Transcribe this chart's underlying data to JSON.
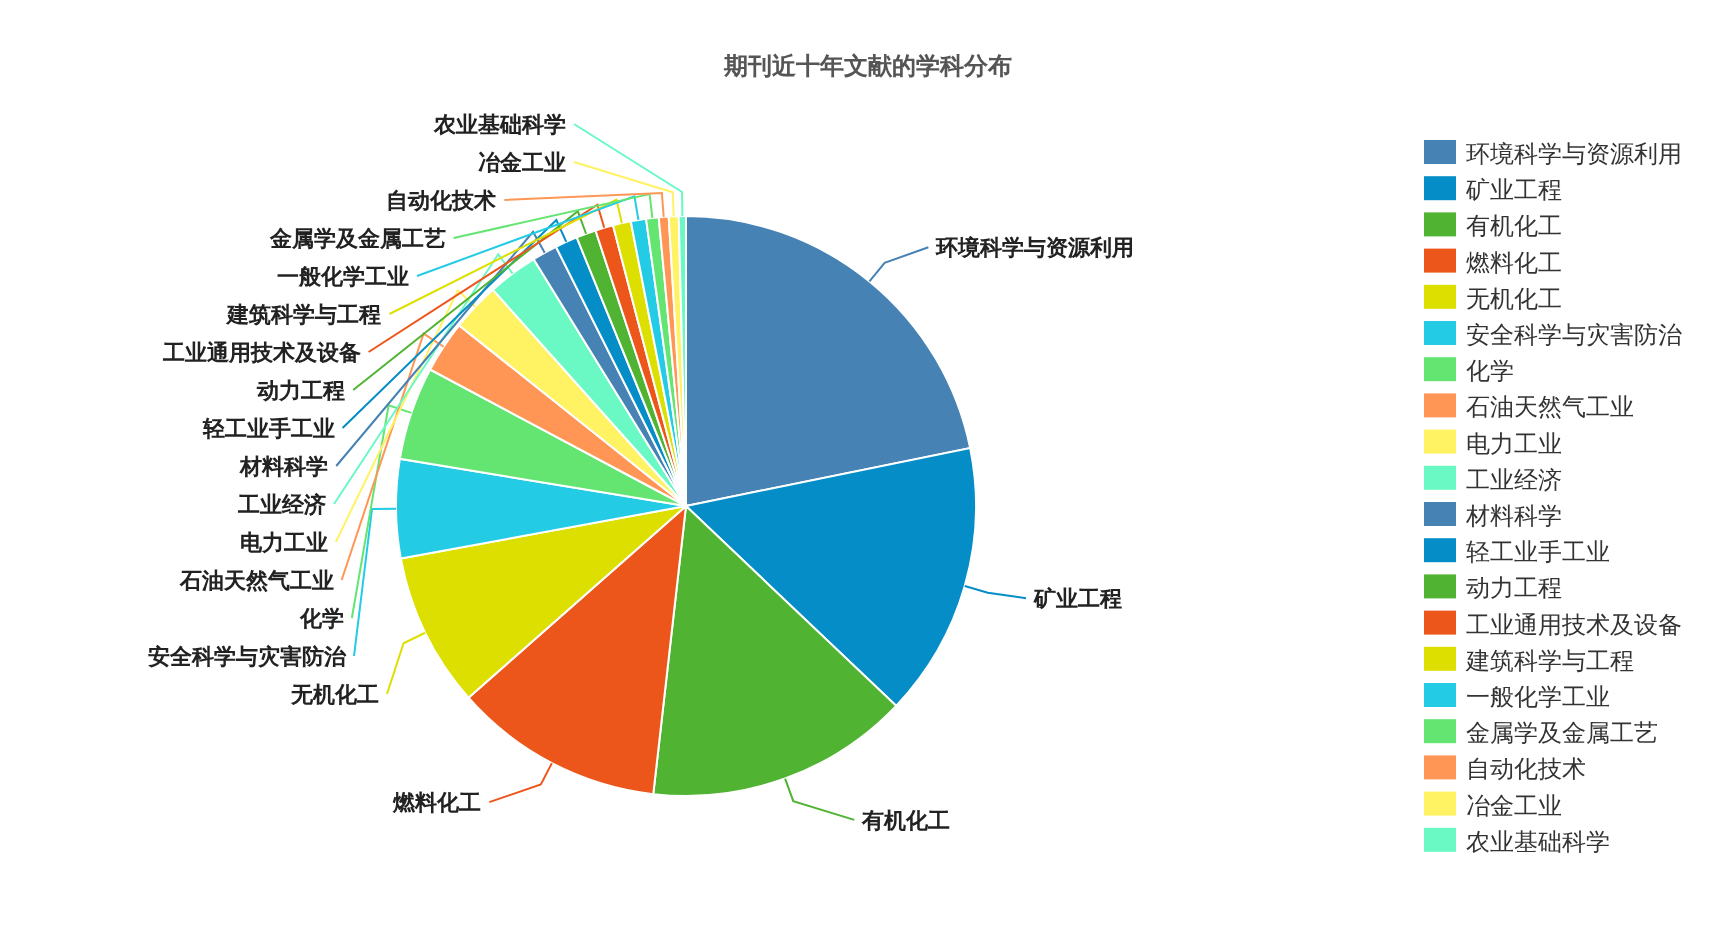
{
  "chart_data": {
    "type": "pie",
    "title": "期刊近十年文献的学科分布",
    "categories": [
      "环境科学与资源利用",
      "矿业工程",
      "有机化工",
      "燃料化工",
      "无机化工",
      "安全科学与灾害防治",
      "化学",
      "石油天然气工业",
      "电力工业",
      "工业经济",
      "材料科学",
      "轻工业手工业",
      "动力工程",
      "工业通用技术及设备",
      "建筑科学与工程",
      "一般化学工业",
      "金属学及金属工艺",
      "自动化技术",
      "冶金工业",
      "农业基础科学"
    ],
    "values": [
      21.8,
      15.3,
      14.7,
      11.7,
      8.6,
      5.5,
      5.2,
      2.9,
      2.7,
      2.8,
      1.4,
      1.25,
      1.1,
      1.0,
      1.0,
      0.85,
      0.7,
      0.55,
      0.55,
      0.4
    ],
    "colors": [
      "#4682b4",
      "#058dc7",
      "#50b432",
      "#ed561b",
      "#dddf00",
      "#24cbe5",
      "#64e572",
      "#ff9655",
      "#fff263",
      "#6af9c4",
      "#4682b4",
      "#058dc7",
      "#50b432",
      "#ed561b",
      "#dddf00",
      "#24cbe5",
      "#64e572",
      "#ff9655",
      "#fff263",
      "#6af9c4"
    ],
    "legend": "right"
  }
}
